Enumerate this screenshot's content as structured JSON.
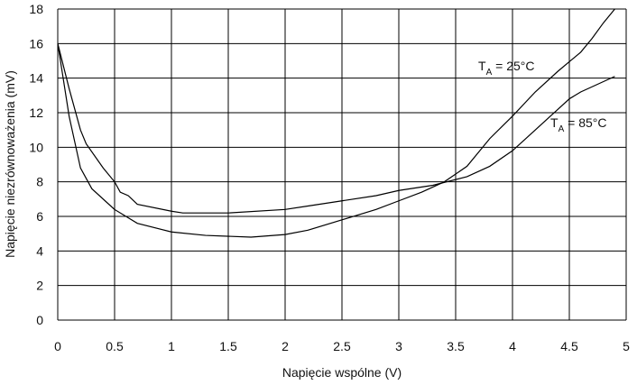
{
  "chart_data": {
    "type": "line",
    "xlabel": "Napięcie wspólne (V)",
    "ylabel": "Napięcie niezrównoważenia (mV)",
    "xlim": [
      0,
      5
    ],
    "ylim": [
      0,
      18
    ],
    "xticks": [
      0,
      0.5,
      1,
      1.5,
      2,
      2.5,
      3,
      3.5,
      4,
      4.5,
      5
    ],
    "yticks": [
      0,
      2,
      4,
      6,
      8,
      10,
      12,
      14,
      16,
      18
    ],
    "grid": true,
    "series": [
      {
        "annotation": [
          "T",
          "A",
          " = 25°C"
        ],
        "color": "#000000",
        "x": [
          0,
          0.1,
          0.2,
          0.3,
          0.5,
          0.7,
          1,
          1.3,
          1.7,
          2,
          2.2,
          2.5,
          2.8,
          3,
          3.2,
          3.4,
          3.6,
          3.8,
          4,
          4.2,
          4.4,
          4.6,
          4.7,
          4.8,
          4.9
        ],
        "values": [
          16,
          11.8,
          8.8,
          7.6,
          6.4,
          5.6,
          5.1,
          4.9,
          4.8,
          4.95,
          5.2,
          5.8,
          6.4,
          6.9,
          7.4,
          8.0,
          8.9,
          10.5,
          11.8,
          13.2,
          14.4,
          15.5,
          16.3,
          17.2,
          18
        ]
      },
      {
        "annotation": [
          "T",
          "A",
          " = 85°C"
        ],
        "color": "#000000",
        "x": [
          0,
          0.1,
          0.2,
          0.25,
          0.4,
          0.5,
          0.55,
          0.62,
          0.7,
          1,
          1.1,
          1.5,
          2,
          2.2,
          2.5,
          2.8,
          3,
          3.3,
          3.6,
          3.8,
          4,
          4.2,
          4.4,
          4.5,
          4.6,
          4.7,
          4.9
        ],
        "values": [
          16,
          13.4,
          11,
          10.2,
          8.8,
          8,
          7.4,
          7.2,
          6.7,
          6.3,
          6.2,
          6.2,
          6.4,
          6.6,
          6.9,
          7.2,
          7.5,
          7.8,
          8.3,
          8.9,
          9.8,
          11,
          12.2,
          12.8,
          13.2,
          13.5,
          14.1
        ]
      }
    ]
  }
}
